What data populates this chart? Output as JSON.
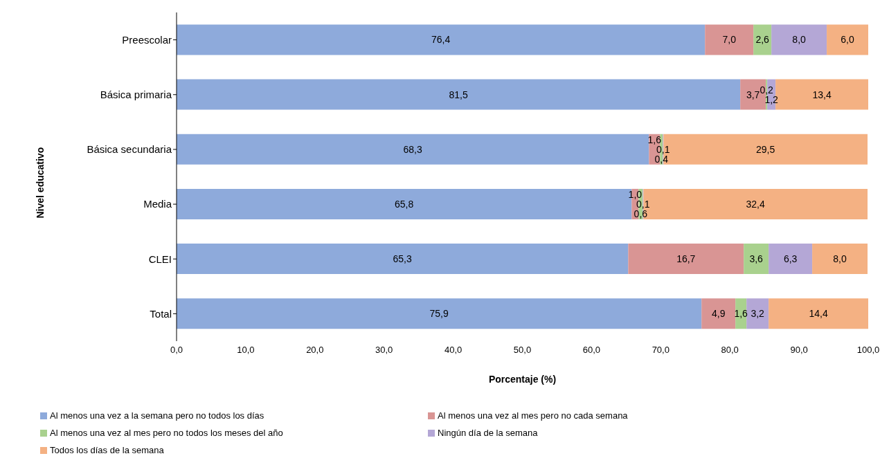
{
  "chart_data": {
    "type": "bar",
    "orientation": "horizontal",
    "stacked": true,
    "xlabel": "Porcentaje (%)",
    "ylabel": "Nivel educativo",
    "categories": [
      "Preescolar",
      "Básica primaria",
      "Básica secundaria",
      "Media",
      "CLEI",
      "Total"
    ],
    "series": [
      {
        "name": "Al menos una vez a la semana pero no todos los días",
        "color": "#8eaadb",
        "values": [
          76.4,
          81.5,
          68.3,
          65.8,
          65.3,
          75.9
        ],
        "value_labels": [
          "76,4",
          "81,5",
          "68,3",
          "65,8",
          "65,3",
          "75,9"
        ]
      },
      {
        "name": "Al menos una vez al mes pero no cada semana",
        "color": "#d99594",
        "values": [
          7.0,
          3.7,
          1.6,
          1.0,
          16.7,
          4.9
        ],
        "value_labels": [
          "7,0",
          "3,7",
          "1,6",
          "1,0",
          "16,7",
          "4,9"
        ]
      },
      {
        "name": "Al menos una vez al mes pero no todos los meses del año",
        "color": "#a9d18e",
        "values": [
          2.6,
          0.2,
          0.4,
          0.6,
          3.6,
          1.6
        ],
        "value_labels": [
          "2,6",
          "0,2",
          "0,4",
          "0,6",
          "3,6",
          "1,6"
        ]
      },
      {
        "name": "Ningún día de la semana",
        "color": "#b4a7d6",
        "values": [
          8.0,
          1.2,
          0.1,
          0.1,
          6.3,
          3.2
        ],
        "value_labels": [
          "8,0",
          "1,2",
          "0,1",
          "0,1",
          "6,3",
          "3,2"
        ]
      },
      {
        "name": "Todos los días de la semana",
        "color": "#f4b183",
        "values": [
          6.0,
          13.4,
          29.5,
          32.4,
          8.0,
          14.4
        ],
        "value_labels": [
          "6,0",
          "13,4",
          "29,5",
          "32,4",
          "8,0",
          "14,4"
        ]
      }
    ],
    "xlim": [
      0,
      100
    ],
    "xticks": [
      {
        "value": 0,
        "label": "0,0"
      },
      {
        "value": 10,
        "label": "10,0"
      },
      {
        "value": 20,
        "label": "20,0"
      },
      {
        "value": 30,
        "label": "30,0"
      },
      {
        "value": 40,
        "label": "40,0"
      },
      {
        "value": 50,
        "label": "50,0"
      },
      {
        "value": 60,
        "label": "60,0"
      },
      {
        "value": 70,
        "label": "70,0"
      },
      {
        "value": 80,
        "label": "80,0"
      },
      {
        "value": 90,
        "label": "90,0"
      },
      {
        "value": 100,
        "label": "100,0"
      }
    ],
    "grid": false,
    "legend": "bottom"
  }
}
